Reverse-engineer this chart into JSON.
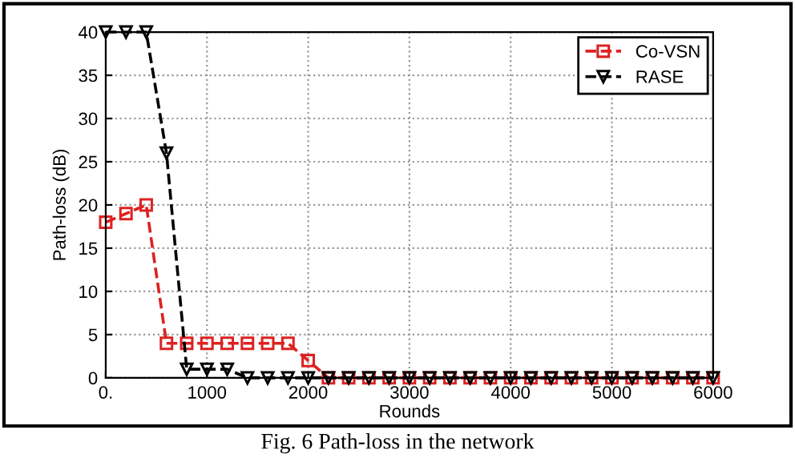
{
  "chart_data": {
    "type": "line",
    "xlabel": "Rounds",
    "ylabel": "Path-loss (dB)",
    "x": [
      0,
      200,
      400,
      600,
      800,
      1000,
      1200,
      1400,
      1600,
      1800,
      2000,
      2200,
      2400,
      2600,
      2800,
      3000,
      3200,
      3400,
      3600,
      3800,
      4000,
      4200,
      4400,
      4600,
      4800,
      5000,
      5200,
      5400,
      5600,
      5800,
      6000
    ],
    "series": [
      {
        "name": "Co-VSN",
        "color": "#dd2222",
        "marker": "square",
        "line_style": "dashed",
        "values": [
          18,
          19,
          20,
          4,
          4,
          4,
          4,
          4,
          4,
          4,
          2,
          0,
          0,
          0,
          0,
          0,
          0,
          0,
          0,
          0,
          0,
          0,
          0,
          0,
          0,
          0,
          0,
          0,
          0,
          0,
          0
        ]
      },
      {
        "name": "RASE",
        "color": "#000000",
        "marker": "triangle",
        "line_style": "dashed",
        "values": [
          40,
          40,
          40,
          26,
          1,
          1,
          1,
          0,
          0,
          0,
          0,
          0,
          0,
          0,
          0,
          0,
          0,
          0,
          0,
          0,
          0,
          0,
          0,
          0,
          0,
          0,
          0,
          0,
          0,
          0,
          0
        ]
      }
    ],
    "xlim": [
      0,
      6000
    ],
    "xticks": [
      {
        "value": 0,
        "label": "0."
      },
      1000,
      2000,
      3000,
      4000,
      5000,
      6000
    ],
    "ylim": [
      0,
      40
    ],
    "yticks": [
      0,
      5,
      10,
      15,
      20,
      25,
      30,
      35,
      40
    ],
    "grid": true,
    "legend": "top right",
    "annotations": [
      "Fig. 6 Path-loss in the network"
    ]
  }
}
